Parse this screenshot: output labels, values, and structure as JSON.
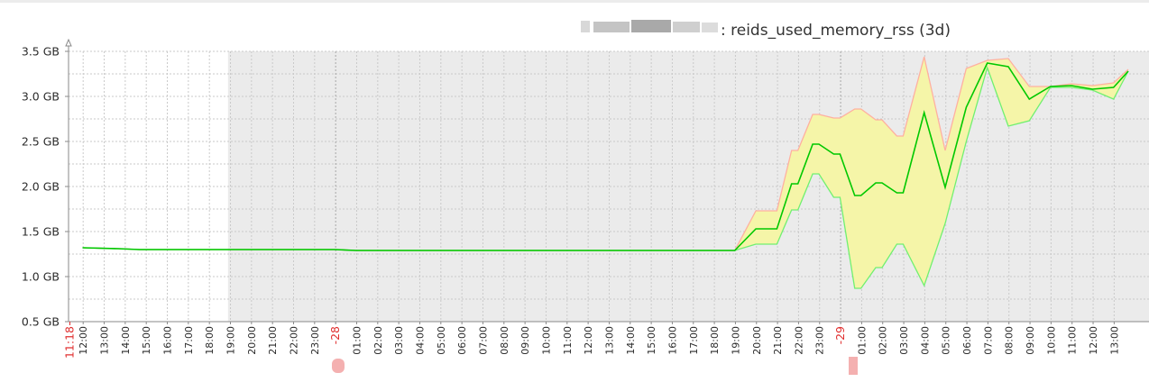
{
  "chart_data": {
    "type": "area",
    "title": ": reids_used_memory_rss (3d)",
    "ylabel": "",
    "xlabel": "",
    "ylim": [
      0.5,
      3.5
    ],
    "y_ticks": [
      "0.5 GB",
      "1.0 GB",
      "1.5 GB",
      "2.0 GB",
      "2.5 GB",
      "3.0 GB",
      "3.5 GB"
    ],
    "y_tick_values": [
      0.5,
      1.0,
      1.5,
      2.0,
      2.5,
      3.0,
      3.5
    ],
    "x_start_label": "11:18",
    "x_ticks": [
      "12:00",
      "13:00",
      "14:00",
      "15:00",
      "16:00",
      "17:00",
      "18:00",
      "19:00",
      "20:00",
      "21:00",
      "22:00",
      "23:00",
      "-28",
      "01:00",
      "02:00",
      "03:00",
      "04:00",
      "05:00",
      "06:00",
      "07:00",
      "08:00",
      "09:00",
      "10:00",
      "11:00",
      "12:00",
      "13:00",
      "14:00",
      "15:00",
      "16:00",
      "17:00",
      "18:00",
      "19:00",
      "20:00",
      "21:00",
      "22:00",
      "23:00",
      "-29",
      "01:00",
      "02:00",
      "03:00",
      "04:00",
      "05:00",
      "06:00",
      "07:00",
      "08:00",
      "09:00",
      "10:00",
      "11:00",
      "12:00",
      "13:00"
    ],
    "x_tick_red": [
      12,
      36
    ],
    "grid": true,
    "shaded_region_start_tick": 6,
    "colors": {
      "avg": "#00c800",
      "max": "#ffb0a0",
      "min": "#70f070",
      "band": "#f5f5a8",
      "shade": "#ebebeb",
      "red": "#e03030"
    },
    "series": [
      {
        "hours": [
          0,
          1.7,
          2.7,
          8,
          9,
          10,
          11,
          12,
          13,
          14,
          15,
          16,
          17,
          18,
          19,
          20,
          21,
          22,
          23,
          24,
          25,
          26,
          27,
          28,
          29,
          29.7,
          30,
          30.7,
          31,
          32,
          33,
          33.7,
          34,
          34.7,
          35,
          35.7,
          36,
          36.7,
          37,
          37.7,
          38,
          38.7,
          39,
          40,
          41,
          42,
          43,
          44,
          45,
          46,
          47,
          48,
          49,
          49.7
        ],
        "avg": [
          1.32,
          1.31,
          1.3,
          1.3,
          1.3,
          1.3,
          1.3,
          1.3,
          1.29,
          1.29,
          1.29,
          1.29,
          1.29,
          1.29,
          1.29,
          1.29,
          1.29,
          1.29,
          1.29,
          1.29,
          1.29,
          1.29,
          1.29,
          1.29,
          1.29,
          1.29,
          1.29,
          1.29,
          1.29,
          1.53,
          1.53,
          2.03,
          2.03,
          2.47,
          2.47,
          2.36,
          2.36,
          1.9,
          1.9,
          2.04,
          2.04,
          1.93,
          1.93,
          2.82,
          1.99,
          2.88,
          3.37,
          3.33,
          2.97,
          3.11,
          3.12,
          3.08,
          3.1,
          3.28
        ],
        "max": [
          1.32,
          1.31,
          1.3,
          1.3,
          1.3,
          1.3,
          1.3,
          1.3,
          1.29,
          1.29,
          1.29,
          1.29,
          1.29,
          1.29,
          1.29,
          1.29,
          1.29,
          1.29,
          1.29,
          1.29,
          1.29,
          1.29,
          1.29,
          1.29,
          1.29,
          1.29,
          1.29,
          1.29,
          1.29,
          1.73,
          1.73,
          2.4,
          2.4,
          2.8,
          2.8,
          2.76,
          2.76,
          2.86,
          2.86,
          2.74,
          2.74,
          2.56,
          2.56,
          3.44,
          2.4,
          3.31,
          3.4,
          3.42,
          3.11,
          3.11,
          3.14,
          3.12,
          3.15,
          3.3
        ],
        "min": [
          1.32,
          1.31,
          1.3,
          1.3,
          1.3,
          1.3,
          1.3,
          1.3,
          1.29,
          1.29,
          1.29,
          1.29,
          1.29,
          1.29,
          1.29,
          1.29,
          1.29,
          1.29,
          1.29,
          1.29,
          1.29,
          1.29,
          1.29,
          1.29,
          1.29,
          1.29,
          1.29,
          1.29,
          1.29,
          1.36,
          1.36,
          1.74,
          1.74,
          2.14,
          2.14,
          1.88,
          1.88,
          0.87,
          0.87,
          1.1,
          1.1,
          1.36,
          1.36,
          0.9,
          1.59,
          2.5,
          3.32,
          2.67,
          2.73,
          3.1,
          3.1,
          3.07,
          2.97,
          3.28
        ]
      }
    ]
  }
}
